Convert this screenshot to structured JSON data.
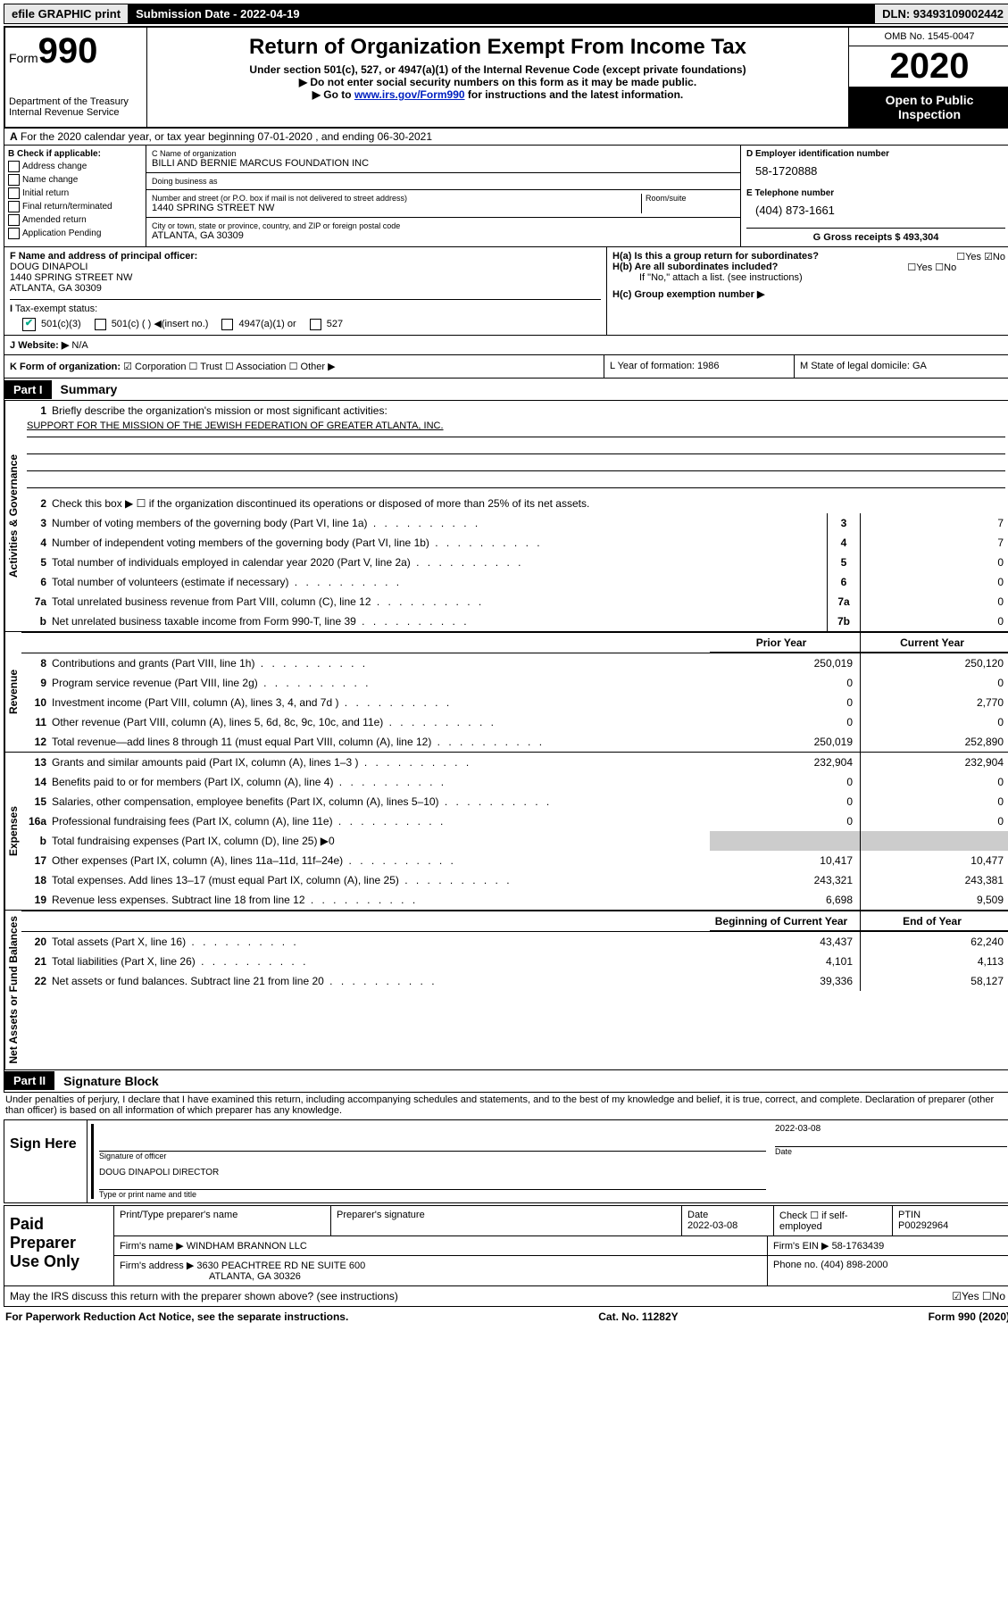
{
  "top": {
    "efile": "efile GRAPHIC print",
    "subdate": "Submission Date - 2022-04-19",
    "dln": "DLN: 93493109002442"
  },
  "header": {
    "form_word": "Form",
    "form_num": "990",
    "dept1": "Department of the Treasury",
    "dept2": "Internal Revenue Service",
    "title": "Return of Organization Exempt From Income Tax",
    "sub": "Under section 501(c), 527, or 4947(a)(1) of the Internal Revenue Code (except private foundations)",
    "instr1": "▶ Do not enter social security numbers on this form as it may be made public.",
    "instr2_pre": "▶ Go to ",
    "instr2_link": "www.irs.gov/Form990",
    "instr2_post": " for instructions and the latest information.",
    "omb": "OMB No. 1545-0047",
    "year": "2020",
    "inspection": "Open to Public Inspection"
  },
  "row_a": "For the 2020 calendar year, or tax year beginning 07-01-2020    , and ending 06-30-2021",
  "section_b": {
    "check_label": "B Check if applicable:",
    "opts": [
      "Address change",
      "Name change",
      "Initial return",
      "Final return/terminated",
      "Amended return",
      "Application Pending"
    ],
    "c_label": "C Name of organization",
    "c_name": "BILLI AND BERNIE MARCUS FOUNDATION INC",
    "dba_label": "Doing business as",
    "dba_val": "",
    "addr_label": "Number and street (or P.O. box if mail is not delivered to street address)",
    "room_label": "Room/suite",
    "addr_val": "1440 SPRING STREET NW",
    "city_label": "City or town, state or province, country, and ZIP or foreign postal code",
    "city_val": "ATLANTA, GA  30309",
    "d_label": "D Employer identification number",
    "d_val": "58-1720888",
    "e_label": "E Telephone number",
    "e_val": "(404) 873-1661",
    "g_label": "G Gross receipts $ 493,304"
  },
  "section_f": {
    "f_label": "F  Name and address of principal officer:",
    "f_name": "DOUG DINAPOLI",
    "f_addr1": "1440 SPRING STREET NW",
    "f_addr2": "ATLANTA, GA  30309",
    "ha": "H(a)  Is this a group return for subordinates?",
    "ha_yn": "☐Yes  ☑No",
    "hb": "H(b)  Are all subordinates included?",
    "hb_yn": "☐Yes  ☐No",
    "hb_note": "If \"No,\" attach a list. (see instructions)",
    "hc": "H(c)  Group exemption number ▶"
  },
  "tax_status": {
    "label": "Tax-exempt status:",
    "opt1": "501(c)(3)",
    "opt2": "501(c) (  ) ◀(insert no.)",
    "opt3": "4947(a)(1) or",
    "opt4": "527"
  },
  "website": {
    "label": "Website: ▶",
    "val": "N/A"
  },
  "row_k": {
    "label": "K Form of organization:",
    "opts": "☑ Corporation  ☐ Trust  ☐ Association  ☐ Other ▶",
    "l": "L Year of formation: 1986",
    "m": "M State of legal domicile: GA"
  },
  "part1": {
    "header": "Part I",
    "title": "Summary",
    "vert1": "Activities & Governance",
    "vert2": "Revenue",
    "vert3": "Expenses",
    "vert4": "Net Assets or Fund Balances",
    "l1": "Briefly describe the organization's mission or most significant activities:",
    "l1_val": "SUPPORT FOR THE MISSION OF THE JEWISH FEDERATION OF GREATER ATLANTA, INC.",
    "l2": "Check this box ▶ ☐  if the organization discontinued its operations or disposed of more than 25% of its net assets.",
    "lines_ag": [
      {
        "n": "3",
        "d": "Number of voting members of the governing body (Part VI, line 1a)",
        "c": "3",
        "v": "7"
      },
      {
        "n": "4",
        "d": "Number of independent voting members of the governing body (Part VI, line 1b)",
        "c": "4",
        "v": "7"
      },
      {
        "n": "5",
        "d": "Total number of individuals employed in calendar year 2020 (Part V, line 2a)",
        "c": "5",
        "v": "0"
      },
      {
        "n": "6",
        "d": "Total number of volunteers (estimate if necessary)",
        "c": "6",
        "v": "0"
      },
      {
        "n": "7a",
        "d": "Total unrelated business revenue from Part VIII, column (C), line 12",
        "c": "7a",
        "v": "0"
      },
      {
        "n": "b",
        "d": "Net unrelated business taxable income from Form 990-T, line 39",
        "c": "7b",
        "v": "0"
      }
    ],
    "th_prior": "Prior Year",
    "th_current": "Current Year",
    "lines_rev": [
      {
        "n": "8",
        "d": "Contributions and grants (Part VIII, line 1h)",
        "p": "250,019",
        "c": "250,120"
      },
      {
        "n": "9",
        "d": "Program service revenue (Part VIII, line 2g)",
        "p": "0",
        "c": "0"
      },
      {
        "n": "10",
        "d": "Investment income (Part VIII, column (A), lines 3, 4, and 7d )",
        "p": "0",
        "c": "2,770"
      },
      {
        "n": "11",
        "d": "Other revenue (Part VIII, column (A), lines 5, 6d, 8c, 9c, 10c, and 11e)",
        "p": "0",
        "c": "0"
      },
      {
        "n": "12",
        "d": "Total revenue—add lines 8 through 11 (must equal Part VIII, column (A), line 12)",
        "p": "250,019",
        "c": "252,890"
      }
    ],
    "lines_exp": [
      {
        "n": "13",
        "d": "Grants and similar amounts paid (Part IX, column (A), lines 1–3 )",
        "p": "232,904",
        "c": "232,904"
      },
      {
        "n": "14",
        "d": "Benefits paid to or for members (Part IX, column (A), line 4)",
        "p": "0",
        "c": "0"
      },
      {
        "n": "15",
        "d": "Salaries, other compensation, employee benefits (Part IX, column (A), lines 5–10)",
        "p": "0",
        "c": "0"
      },
      {
        "n": "16a",
        "d": "Professional fundraising fees (Part IX, column (A), line 11e)",
        "p": "0",
        "c": "0"
      }
    ],
    "l16b": "Total fundraising expenses (Part IX, column (D), line 25) ▶0",
    "lines_exp2": [
      {
        "n": "17",
        "d": "Other expenses (Part IX, column (A), lines 11a–11d, 11f–24e)",
        "p": "10,417",
        "c": "10,477"
      },
      {
        "n": "18",
        "d": "Total expenses. Add lines 13–17 (must equal Part IX, column (A), line 25)",
        "p": "243,321",
        "c": "243,381"
      },
      {
        "n": "19",
        "d": "Revenue less expenses. Subtract line 18 from line 12",
        "p": "6,698",
        "c": "9,509"
      }
    ],
    "th_begin": "Beginning of Current Year",
    "th_end": "End of Year",
    "lines_net": [
      {
        "n": "20",
        "d": "Total assets (Part X, line 16)",
        "p": "43,437",
        "c": "62,240"
      },
      {
        "n": "21",
        "d": "Total liabilities (Part X, line 26)",
        "p": "4,101",
        "c": "4,113"
      },
      {
        "n": "22",
        "d": "Net assets or fund balances. Subtract line 21 from line 20",
        "p": "39,336",
        "c": "58,127"
      }
    ]
  },
  "part2": {
    "header": "Part II",
    "title": "Signature Block",
    "penalties": "Under penalties of perjury, I declare that I have examined this return, including accompanying schedules and statements, and to the best of my knowledge and belief, it is true, correct, and complete. Declaration of preparer (other than officer) is based on all information of which preparer has any knowledge."
  },
  "sign": {
    "left": "Sign Here",
    "sig_label": "Signature of officer",
    "date_label": "Date",
    "date_val": "2022-03-08",
    "name": "DOUG DINAPOLI  DIRECTOR",
    "name_label": "Type or print name and title"
  },
  "prep": {
    "left": "Paid Preparer Use Only",
    "h1": "Print/Type preparer's name",
    "h2": "Preparer's signature",
    "h3": "Date",
    "h3v": "2022-03-08",
    "h4": "Check ☐ if self-employed",
    "h5": "PTIN",
    "h5v": "P00292964",
    "firm_label": "Firm's name   ▶",
    "firm_val": "WINDHAM BRANNON LLC",
    "ein_label": "Firm's EIN ▶",
    "ein_val": "58-1763439",
    "addr_label": "Firm's address ▶",
    "addr_val1": "3630 PEACHTREE RD NE SUITE 600",
    "addr_val2": "ATLANTA, GA  30326",
    "phone_label": "Phone no.",
    "phone_val": "(404) 898-2000"
  },
  "discuss": {
    "q": "May the IRS discuss this return with the preparer shown above? (see instructions)",
    "yn": "☑Yes  ☐No"
  },
  "footer": {
    "left": "For Paperwork Reduction Act Notice, see the separate instructions.",
    "mid": "Cat. No. 11282Y",
    "right": "Form 990 (2020)"
  }
}
